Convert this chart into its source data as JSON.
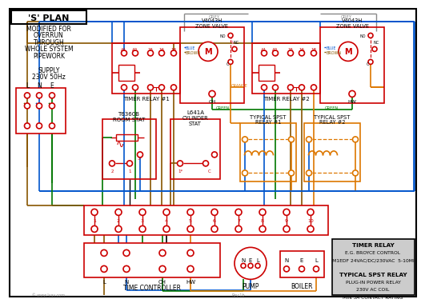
{
  "bg_color": "#ffffff",
  "red": "#cc0000",
  "blue": "#0055cc",
  "green": "#007700",
  "orange": "#dd7700",
  "brown": "#885500",
  "black": "#000000",
  "grey": "#888888",
  "lt_grey": "#cccccc",
  "note_bg": "#cccccc",
  "title": "'S' PLAN",
  "sub_lines": [
    "MODIFIED FOR",
    "OVERRUN",
    "THROUGH",
    "WHOLE SYSTEM",
    "PIPEWORK"
  ],
  "supply": [
    "SUPPLY",
    "230V 50Hz"
  ],
  "lne": [
    "L",
    "N",
    "E"
  ],
  "tr_labels": [
    "TIMER RELAY #1",
    "TIMER RELAY #2"
  ],
  "zv_labels": [
    "V4043H\nZONE VALVE",
    "V4043H\nZONE VALVE"
  ],
  "rs_label": "T6360B\nROOM STAT",
  "cs_label": "L641A\nCYLINDER\nSTAT",
  "spst_labels": [
    "TYPICAL SPST\nRELAY #1",
    "TYPICAL SPST\nRELAY #2"
  ],
  "tc_label": "TIME CONTROLLER",
  "pump_label": "PUMP",
  "boiler_label": "BOILER",
  "note_lines": [
    "TIMER RELAY",
    "E.G. BROYCE CONTROL",
    "M1EDF 24VAC/DC/230VAC  5-10MI",
    "",
    "TYPICAL SPST RELAY",
    "PLUG-IN POWER RELAY",
    "230V AC COIL",
    "MIN 3A CONTACT RATING"
  ],
  "term_nums": [
    "1",
    "2",
    "3",
    "4",
    "5",
    "6",
    "7",
    "8",
    "9",
    "10"
  ]
}
